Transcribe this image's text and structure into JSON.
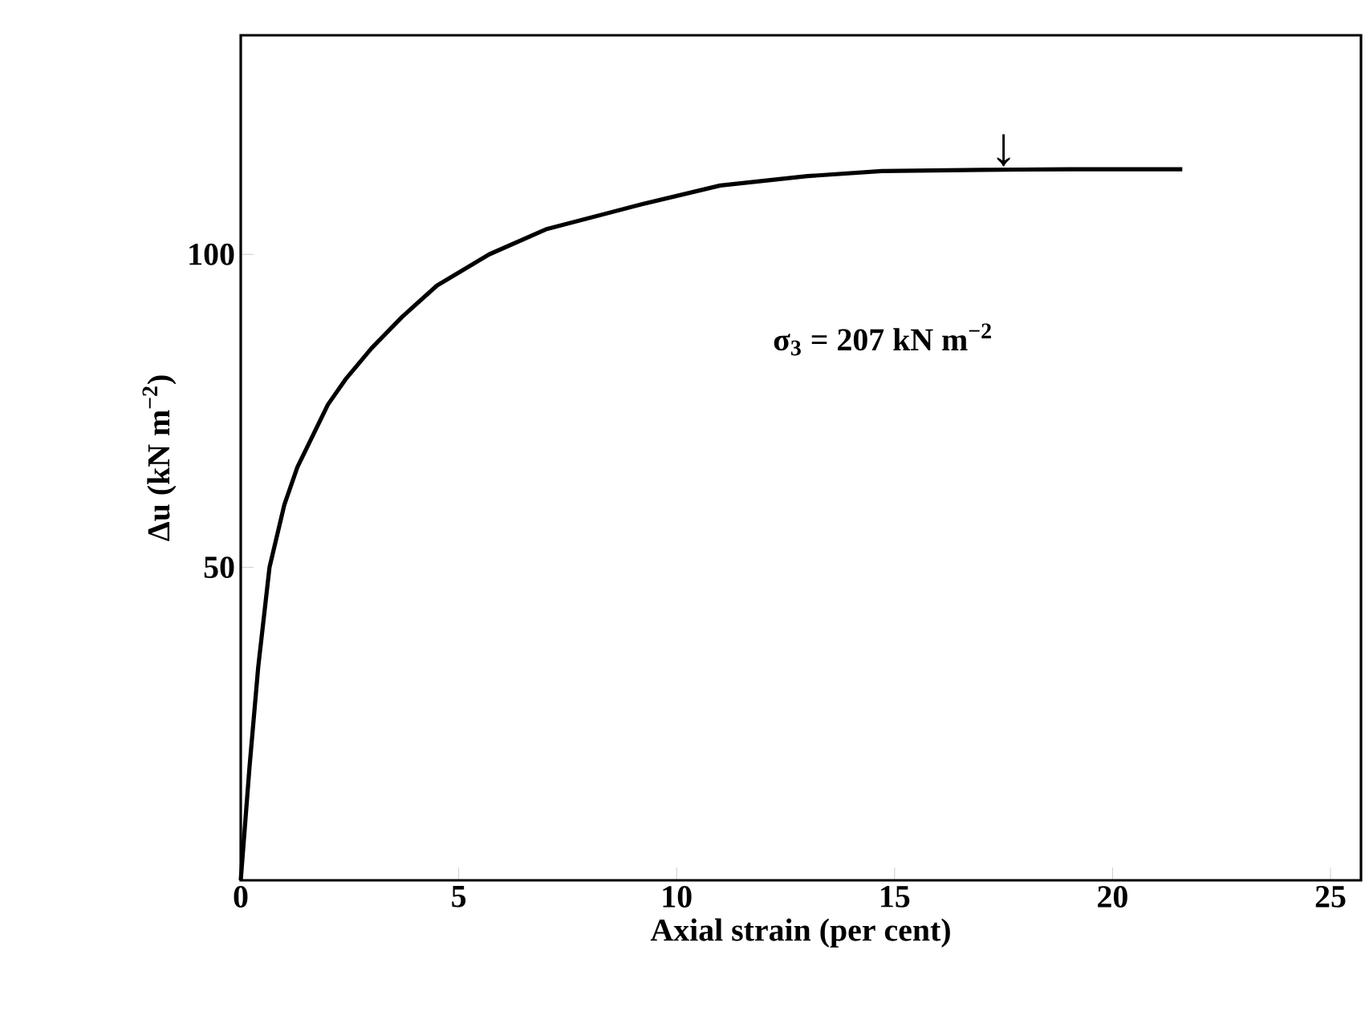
{
  "chart_data": {
    "type": "line",
    "xlabel": "Axial strain (per cent)",
    "ylabel": "Δu (kN m$^{−2}$)",
    "x": [
      0,
      0.2,
      0.4,
      0.66,
      1.0,
      1.3,
      1.65,
      2.0,
      2.4,
      3.0,
      3.7,
      4.5,
      5.7,
      7.0,
      9.2,
      11.0,
      13.0,
      14.7,
      17.0,
      19.0,
      21.6
    ],
    "series": [
      {
        "color": "#000000",
        "values": [
          0,
          18,
          34,
          50,
          60,
          66,
          71,
          76,
          80,
          85,
          90,
          95,
          100,
          104,
          108,
          111,
          112.5,
          113.3,
          113.5,
          113.6,
          113.6
        ]
      }
    ],
    "xlim": [
      0,
      25.7
    ],
    "ylim": [
      0,
      135
    ],
    "xticks": [
      0,
      5,
      10,
      15,
      20,
      25
    ],
    "yticks": [
      50,
      100
    ],
    "annotations": [
      "σ$_{3}$ = 207 kN m$^{−2}$",
      {
        "text": "↓",
        "x": 17.5,
        "y": 114
      }
    ],
    "grid": false,
    "marker": "none",
    "line_style": "solid"
  }
}
